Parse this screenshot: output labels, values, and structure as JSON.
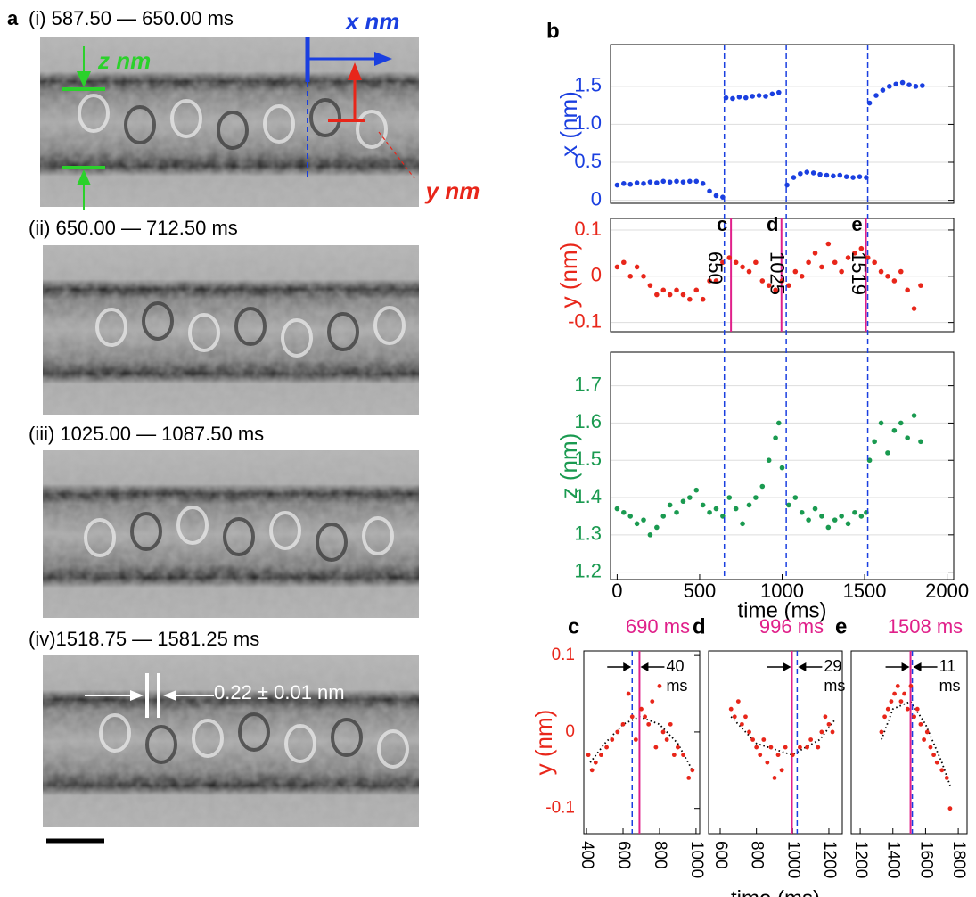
{
  "panel_a": {
    "label": "a",
    "frames": [
      {
        "caption": "(i) 587.50 — 650.00 ms"
      },
      {
        "caption": "(ii) 650.00 — 712.50 ms"
      },
      {
        "caption": "(iii) 1025.00 — 1087.50 ms"
      },
      {
        "caption": "(iv)1518.75 — 1581.25 ms"
      }
    ],
    "annotations": {
      "x": "x nm",
      "y": "y nm",
      "z": "z nm",
      "spacing": "0.22 ± 0.01 nm"
    }
  },
  "chart_data": [
    {
      "type": "scatter",
      "panel": "b",
      "ylabel": "x (nm)",
      "color": "#1a3fe0",
      "grid": true,
      "xlim": [
        -40,
        2040
      ],
      "ylim": [
        -0.04,
        2.05
      ],
      "yticks": [
        0,
        0.5,
        {
          "value": 1,
          "label": "1.0"
        },
        1.5
      ],
      "x": [
        0,
        40,
        80,
        120,
        160,
        200,
        240,
        280,
        320,
        360,
        400,
        440,
        480,
        520,
        560,
        600,
        640,
        660,
        700,
        740,
        780,
        820,
        860,
        900,
        940,
        980,
        1030,
        1070,
        1110,
        1150,
        1190,
        1230,
        1270,
        1310,
        1350,
        1390,
        1430,
        1470,
        1510,
        1530,
        1570,
        1610,
        1650,
        1690,
        1730,
        1770,
        1810,
        1850
      ],
      "values": [
        0.2,
        0.22,
        0.21,
        0.23,
        0.22,
        0.24,
        0.23,
        0.25,
        0.24,
        0.25,
        0.24,
        0.25,
        0.25,
        0.22,
        0.12,
        0.06,
        0.04,
        1.35,
        1.34,
        1.36,
        1.35,
        1.37,
        1.38,
        1.37,
        1.4,
        1.42,
        0.2,
        0.3,
        0.35,
        0.37,
        0.36,
        0.34,
        0.33,
        0.32,
        0.33,
        0.31,
        0.3,
        0.31,
        0.3,
        1.28,
        1.38,
        1.45,
        1.5,
        1.53,
        1.55,
        1.52,
        1.5,
        1.51
      ]
    },
    {
      "type": "scatter",
      "ylabel": "y (nm)",
      "color": "#e8261a",
      "grid": true,
      "xlim": [
        -40,
        2040
      ],
      "ylim": [
        -0.12,
        0.125
      ],
      "yticks": [
        -0.1,
        0,
        0.1
      ],
      "markers": [
        {
          "value": 690,
          "label": "c"
        },
        {
          "value": 996,
          "label": "d"
        },
        {
          "value": 1508,
          "label": "e"
        }
      ],
      "marker_color": "#e0208a",
      "x": [
        0,
        40,
        80,
        120,
        160,
        200,
        240,
        280,
        320,
        360,
        400,
        440,
        480,
        520,
        560,
        600,
        640,
        680,
        720,
        760,
        800,
        840,
        880,
        920,
        960,
        1000,
        1040,
        1080,
        1120,
        1160,
        1200,
        1240,
        1280,
        1320,
        1360,
        1400,
        1440,
        1480,
        1520,
        1560,
        1600,
        1640,
        1680,
        1720,
        1760,
        1800,
        1840
      ],
      "values": [
        0.02,
        0.03,
        0,
        0.02,
        0,
        -0.02,
        -0.04,
        -0.03,
        -0.04,
        -0.03,
        -0.04,
        -0.05,
        -0.03,
        -0.05,
        -0.01,
        -0.01,
        0.03,
        0.04,
        0.03,
        0.02,
        0.01,
        0.03,
        -0.01,
        -0.02,
        -0.03,
        -0.01,
        -0.02,
        0.01,
        0,
        0.03,
        0.05,
        0.02,
        0.07,
        0.03,
        0.01,
        0.04,
        0.05,
        0.06,
        0.04,
        0.03,
        0.01,
        0,
        -0.01,
        0.01,
        -0.03,
        -0.07,
        -0.02
      ]
    },
    {
      "type": "scatter",
      "ylabel": "z (nm)",
      "xlabel": "time (ms)",
      "color": "#1a9a50",
      "grid": true,
      "xlim": [
        -40,
        2040
      ],
      "ylim": [
        1.18,
        1.79
      ],
      "yticks": [
        1.2,
        1.3,
        1.4,
        1.5,
        1.6,
        1.7
      ],
      "xticks": [
        0,
        500,
        1000,
        1500,
        2000
      ],
      "vlines": [
        650,
        1025,
        1519
      ],
      "vline_color": "#1a3fe0",
      "x": [
        0,
        40,
        80,
        120,
        160,
        200,
        240,
        280,
        320,
        360,
        400,
        440,
        480,
        520,
        560,
        600,
        640,
        680,
        720,
        760,
        800,
        840,
        880,
        920,
        960,
        980,
        1000,
        1040,
        1080,
        1120,
        1160,
        1200,
        1240,
        1280,
        1320,
        1360,
        1400,
        1440,
        1480,
        1510,
        1530,
        1560,
        1600,
        1640,
        1680,
        1720,
        1760,
        1800,
        1840
      ],
      "values": [
        1.37,
        1.36,
        1.35,
        1.33,
        1.34,
        1.3,
        1.32,
        1.35,
        1.38,
        1.36,
        1.39,
        1.4,
        1.42,
        1.38,
        1.36,
        1.37,
        1.35,
        1.4,
        1.37,
        1.33,
        1.38,
        1.4,
        1.43,
        1.5,
        1.56,
        1.6,
        1.48,
        1.38,
        1.4,
        1.36,
        1.34,
        1.37,
        1.35,
        1.32,
        1.34,
        1.35,
        1.33,
        1.36,
        1.35,
        1.36,
        1.5,
        1.55,
        1.6,
        1.52,
        1.58,
        1.6,
        1.56,
        1.62,
        1.55
      ]
    },
    {
      "type": "scatter",
      "panel": "c",
      "ylabel": "y (nm)",
      "color": "#e8261a",
      "xlim": [
        385,
        1020
      ],
      "ylim": [
        -0.133,
        0.106
      ],
      "yticks": [
        -0.1,
        0,
        0.1
      ],
      "xticks": [
        400,
        600,
        800,
        1000
      ],
      "xtick_rotation": 90,
      "dashed_line": 650,
      "peak": {
        "value": 690,
        "label": "690 ms"
      },
      "shift": 40,
      "shift_unit": "ms",
      "x": [
        410,
        430,
        450,
        480,
        510,
        540,
        570,
        600,
        630,
        650,
        670,
        700,
        720,
        740,
        760,
        780,
        800,
        820,
        840,
        860,
        880,
        900,
        930,
        960,
        980
      ],
      "values": [
        -0.03,
        -0.05,
        -0.04,
        -0.03,
        -0.02,
        -0.01,
        0,
        0.01,
        0.05,
        0.02,
        -0.01,
        0.03,
        0.02,
        0.01,
        0.04,
        -0.02,
        0.06,
        0,
        -0.01,
        0.01,
        -0.03,
        -0.02,
        -0.03,
        -0.06,
        -0.05
      ],
      "fit": {
        "x": [
          420,
          500,
          600,
          690,
          800,
          900,
          980
        ],
        "values": [
          -0.04,
          -0.015,
          0.01,
          0.02,
          0.01,
          -0.015,
          -0.05
        ]
      }
    },
    {
      "type": "scatter",
      "panel": "d",
      "xlabel": "time (ms)",
      "color": "#e8261a",
      "xlim": [
        536,
        1274
      ],
      "ylim": [
        -0.133,
        0.106
      ],
      "xticks": [
        600,
        800,
        1000,
        1200
      ],
      "xtick_rotation": 90,
      "dashed_line": 1025,
      "peak": {
        "value": 996,
        "label": "996 ms"
      },
      "shift": 29,
      "shift_unit": "ms",
      "x": [
        660,
        680,
        700,
        720,
        740,
        760,
        780,
        800,
        820,
        840,
        860,
        880,
        900,
        920,
        940,
        960,
        1000,
        1040,
        1080,
        1100,
        1140,
        1160,
        1180,
        1200,
        1220
      ],
      "values": [
        0.03,
        0.02,
        0.04,
        0.01,
        0.02,
        0,
        -0.01,
        -0.02,
        -0.03,
        -0.01,
        -0.04,
        -0.02,
        -0.06,
        -0.03,
        -0.05,
        -0.02,
        -0.03,
        -0.02,
        -0.02,
        -0.01,
        -0.02,
        0,
        0.02,
        0.01,
        0
      ],
      "fit": {
        "x": [
          660,
          800,
          996,
          1150,
          1230
        ],
        "values": [
          0.02,
          -0.015,
          -0.03,
          -0.01,
          0.015
        ]
      }
    },
    {
      "type": "scatter",
      "panel": "e",
      "color": "#e8261a",
      "xlim": [
        1145,
        1854
      ],
      "ylim": [
        -0.133,
        0.106
      ],
      "xticks": [
        1200,
        1400,
        1600,
        1800
      ],
      "xtick_rotation": 90,
      "dashed_line": 1519,
      "peak": {
        "value": 1508,
        "label": "1508 ms"
      },
      "shift": 11,
      "shift_unit": "ms",
      "x": [
        1330,
        1350,
        1370,
        1390,
        1410,
        1430,
        1450,
        1470,
        1490,
        1510,
        1530,
        1550,
        1570,
        1590,
        1610,
        1630,
        1650,
        1670,
        1700,
        1730,
        1750
      ],
      "values": [
        0,
        0.02,
        0.03,
        0.04,
        0.05,
        0.06,
        0.04,
        0.05,
        0.03,
        0.06,
        0.02,
        0.03,
        0.01,
        -0.01,
        0,
        -0.02,
        -0.03,
        -0.04,
        -0.05,
        -0.06,
        -0.1
      ],
      "fit": {
        "x": [
          1330,
          1400,
          1508,
          1600,
          1700,
          1750
        ],
        "values": [
          -0.01,
          0.03,
          0.04,
          0.01,
          -0.04,
          -0.07
        ]
      }
    }
  ]
}
